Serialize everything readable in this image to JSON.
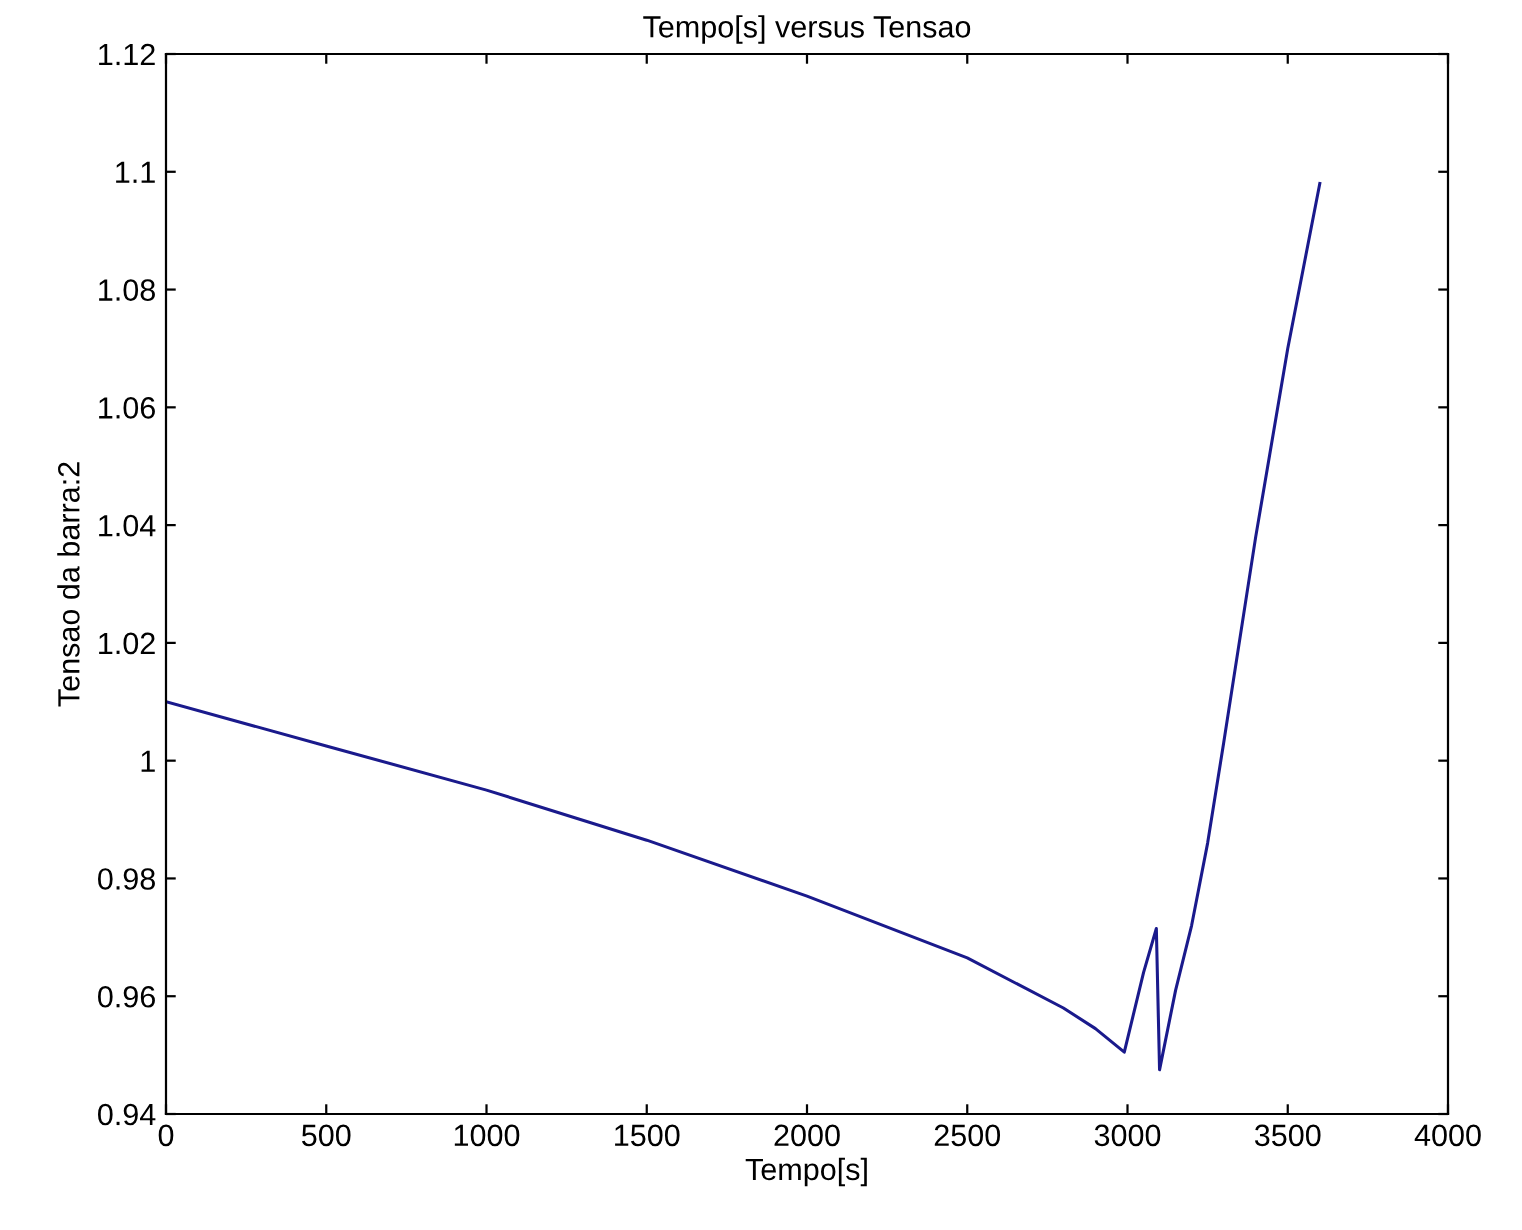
{
  "chart_data": {
    "type": "line",
    "title": "Tempo[s] versus Tensao",
    "xlabel": "Tempo[s]",
    "ylabel": "Tensao da barra:2",
    "x": [
      0,
      500,
      1000,
      1500,
      2000,
      2500,
      2800,
      2900,
      2990,
      3050,
      3090,
      3100,
      3150,
      3200,
      3250,
      3300,
      3400,
      3500,
      3600
    ],
    "series": [
      {
        "color": "#1a1a8c",
        "values": [
          1.01,
          1.0025,
          0.995,
          0.9865,
          0.977,
          0.9665,
          0.958,
          0.9545,
          0.9505,
          0.964,
          0.9715,
          0.9475,
          0.961,
          0.972,
          0.986,
          1.003,
          1.038,
          1.07,
          1.098
        ]
      }
    ],
    "xlim": [
      0,
      4000
    ],
    "xticks": [
      0,
      500,
      1000,
      1500,
      2000,
      2500,
      3000,
      3500,
      4000
    ],
    "ylim": [
      0.94,
      1.12
    ],
    "yticks": [
      0.94,
      0.96,
      0.98,
      1,
      1.02,
      1.04,
      1.06,
      1.08,
      1.1,
      1.12
    ],
    "grid": false,
    "legend": false
  }
}
